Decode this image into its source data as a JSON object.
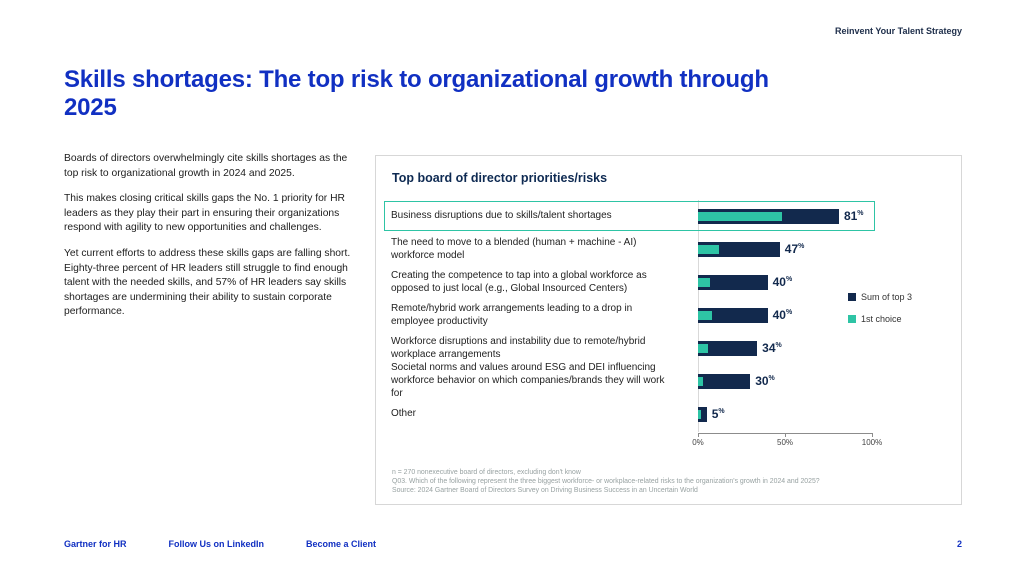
{
  "header": {
    "eyebrow": "Reinvent Your Talent Strategy"
  },
  "title": "Skills shortages: The top risk to organizational growth through 2025",
  "paragraphs": [
    "Boards of directors overwhelmingly cite skills shortages as the top risk to organizational growth in 2024 and 2025.",
    "This makes closing critical skills gaps the No. 1 priority for HR leaders as they play their part in ensuring their organizations respond with agility to new opportunities and challenges.",
    "Yet current efforts to address these skills gaps are falling short. Eighty-three percent of HR leaders still struggle to find enough talent with the needed skills, and 57% of HR leaders say skills shortages are undermining their ability to sustain corporate performance."
  ],
  "chart_data": {
    "type": "bar",
    "orientation": "horizontal",
    "title": "Top board of director priorities/risks",
    "categories": [
      "Business disruptions due to skills/talent shortages",
      "The need to move to a blended (human + machine - AI) workforce model",
      "Creating the competence to tap into a global workforce as opposed to just local (e.g., Global Insourced Centers)",
      "Remote/hybrid work arrangements leading to a drop in employee productivity",
      "Workforce disruptions and instability due to remote/hybrid workplace arrangements",
      "Societal norms and values around ESG and DEI influencing workforce behavior on which companies/brands they will work for",
      "Other"
    ],
    "series": [
      {
        "name": "Sum of top 3",
        "color": "#12294d",
        "values": [
          81,
          47,
          40,
          40,
          34,
          30,
          5
        ]
      },
      {
        "name": "1st choice",
        "color": "#2ec4a5",
        "values": [
          48,
          12,
          7,
          8,
          6,
          3,
          2
        ]
      }
    ],
    "value_labels": [
      "81",
      "47",
      "40",
      "40",
      "34",
      "30",
      "5"
    ],
    "value_suffix": "%",
    "highlighted_category_index": 0,
    "xlim": [
      0,
      100
    ],
    "x_ticks": [
      {
        "value": 0,
        "label": "0%"
      },
      {
        "value": 50,
        "label": "50%"
      },
      {
        "value": 100,
        "label": "100%"
      }
    ],
    "legend_position": "right",
    "grid": false
  },
  "footnotes": [
    "n = 270 nonexecutive board of directors, excluding don't know",
    "Q03. Which of the following represent the three biggest workforce- or workplace-related risks to the organization's growth in 2024 and 2025?",
    "Source: 2024 Gartner Board of Directors Survey on Driving Business Success in an Uncertain World"
  ],
  "footer": {
    "links": [
      "Gartner for HR",
      "Follow Us on LinkedIn",
      "Become a Client"
    ],
    "page": "2"
  }
}
